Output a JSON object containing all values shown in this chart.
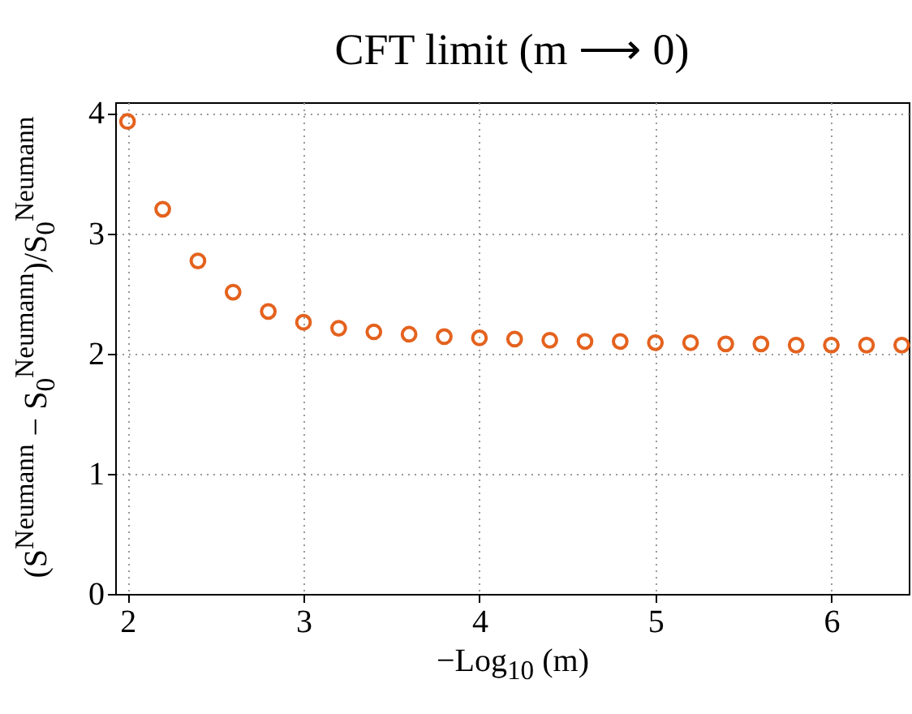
{
  "chart_data": {
    "type": "scatter",
    "title": "CFT limit (m ⟶ 0)",
    "xlabel": "−Log$_{10}$ (m)",
    "ylabel": "(S$^{Neumann}$ − S$_{0}$$^{Neumann}$)/S$_{0}$$^{Neumann}$",
    "x": [
      2,
      2.2,
      2.4,
      2.6,
      2.8,
      3,
      3.2,
      3.4,
      3.6,
      3.8,
      4,
      4.2,
      4.4,
      4.6,
      4.8,
      5,
      5.2,
      5.4,
      5.6,
      5.8,
      6,
      6.2,
      6.4
    ],
    "series": [
      {
        "color": "#e4621e",
        "values": [
          3.93,
          3.2,
          2.77,
          2.51,
          2.35,
          2.26,
          2.21,
          2.18,
          2.16,
          2.14,
          2.13,
          2.12,
          2.11,
          2.1,
          2.1,
          2.09,
          2.09,
          2.08,
          2.08,
          2.07,
          2.07,
          2.07,
          2.07
        ]
      }
    ],
    "xlim": [
      1.93,
      6.44
    ],
    "ylim": [
      0,
      4.09
    ],
    "xticks": [
      2,
      3,
      4,
      5,
      6
    ],
    "yticks": [
      0,
      1,
      2,
      3,
      4
    ],
    "grid": true,
    "marker": "circle",
    "legend": false
  }
}
